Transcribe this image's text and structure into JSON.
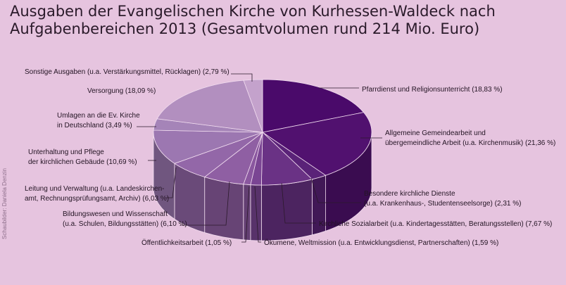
{
  "title_line1": "Ausgaben der Evangelischen Kirche von Kurhessen-Waldeck nach",
  "title_line2": "Aufgabenbereichen 2013 (Gesamtvolumen rund 214 Mio. Euro)",
  "credit": "Schaubilder: Daniela Denzin",
  "chart_data": {
    "type": "pie",
    "unit": "%",
    "slices": [
      {
        "key": "pfarrdienst",
        "label_lines": [
          "Pfarrdienst und Religionsunterricht (18,83 %)"
        ],
        "value": 18.83,
        "color": "#4a0a6a"
      },
      {
        "key": "gemeindearbeit",
        "label_lines": [
          "Allgemeine Gemeindearbeit und",
          "übergemeindliche Arbeit (u.a. Kirchenmusik) (21,36 %)"
        ],
        "value": 21.36,
        "color": "#51116f"
      },
      {
        "key": "besondere",
        "label_lines": [
          "Besondere kirchliche Dienste",
          "(u.a. Krankenhaus-, Studentenseelsorge) (2,31 %)"
        ],
        "value": 2.31,
        "color": "#5a2278"
      },
      {
        "key": "sozialarbeit",
        "label_lines": [
          "Kirchliche Sozialarbeit (u.a. Kindertagesstätten, Beratungsstellen) (7,67 %)"
        ],
        "value": 7.67,
        "color": "#6a3285"
      },
      {
        "key": "oekumene",
        "label_lines": [
          "Ökumene, Weltmission (u.a. Entwicklungsdienst, Partnerschaften) (1,59 %)"
        ],
        "value": 1.59,
        "color": "#7a4593"
      },
      {
        "key": "oeffentlichkeit",
        "label_lines": [
          "Öffentlichkeitsarbeit (1,05 %)"
        ],
        "value": 1.05,
        "color": "#8a579f"
      },
      {
        "key": "bildung",
        "label_lines": [
          "Bildungswesen und Wissenschaft",
          "(u.a. Schulen, Bildungsstätten) (6,10 %)"
        ],
        "value": 6.1,
        "color": "#8f5fa3"
      },
      {
        "key": "leitung",
        "label_lines": [
          "Leitung und Verwaltung (u.a. Landeskirchen-",
          "amt, Rechnungsprüfungsamt, Archiv) (6,03 %)"
        ],
        "value": 6.03,
        "color": "#9367a8"
      },
      {
        "key": "gebaeude",
        "label_lines": [
          "Unterhaltung und Pflege",
          "der kirchlichen Gebäude (10,69 %)"
        ],
        "value": 10.69,
        "color": "#9c77b1"
      },
      {
        "key": "umlagen",
        "label_lines": [
          "Umlagen an die Ev. Kirche",
          "in Deutschland (3,49 %)"
        ],
        "value": 3.49,
        "color": "#a584b8"
      },
      {
        "key": "versorgung",
        "label_lines": [
          "Versorgung (18,09 %)"
        ],
        "value": 18.09,
        "color": "#b28fbf"
      },
      {
        "key": "sonstige",
        "label_lines": [
          "Sonstige Ausgaben (u.a. Verstärkungsmittel, Rücklagen) (2,79 %)"
        ],
        "value": 2.79,
        "color": "#c4a2cc"
      }
    ]
  }
}
